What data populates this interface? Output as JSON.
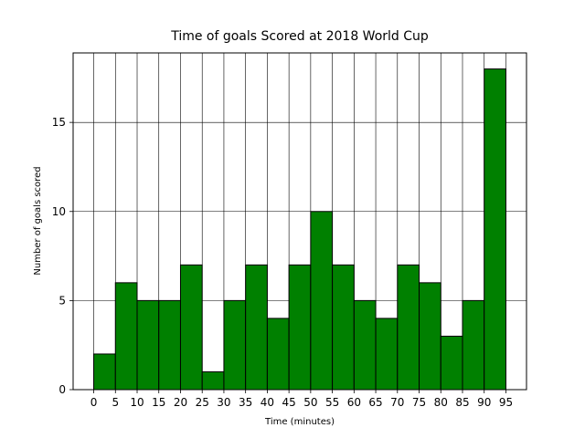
{
  "chart_data": {
    "type": "histogram",
    "title": "Time of goals Scored at 2018 World Cup",
    "x_label": "Time (minutes)",
    "y_label": "Number of goals scored",
    "bins": [
      0,
      5,
      10,
      15,
      20,
      25,
      30,
      35,
      40,
      45,
      50,
      55,
      60,
      65,
      70,
      75,
      80,
      85,
      90,
      95
    ],
    "values": [
      2,
      6,
      5,
      5,
      7,
      1,
      5,
      7,
      4,
      7,
      10,
      7,
      5,
      4,
      7,
      6,
      3,
      5,
      18
    ],
    "color": "#008000",
    "edge_color": "#000000",
    "xlim": [
      -4.75,
      99.75
    ],
    "ylim": [
      0,
      18.9
    ],
    "xticks": [
      0,
      5,
      10,
      15,
      20,
      25,
      30,
      35,
      40,
      45,
      50,
      55,
      60,
      65,
      70,
      75,
      80,
      85,
      90,
      95
    ],
    "yticks": [
      0,
      5,
      10,
      15
    ],
    "grid": true
  }
}
